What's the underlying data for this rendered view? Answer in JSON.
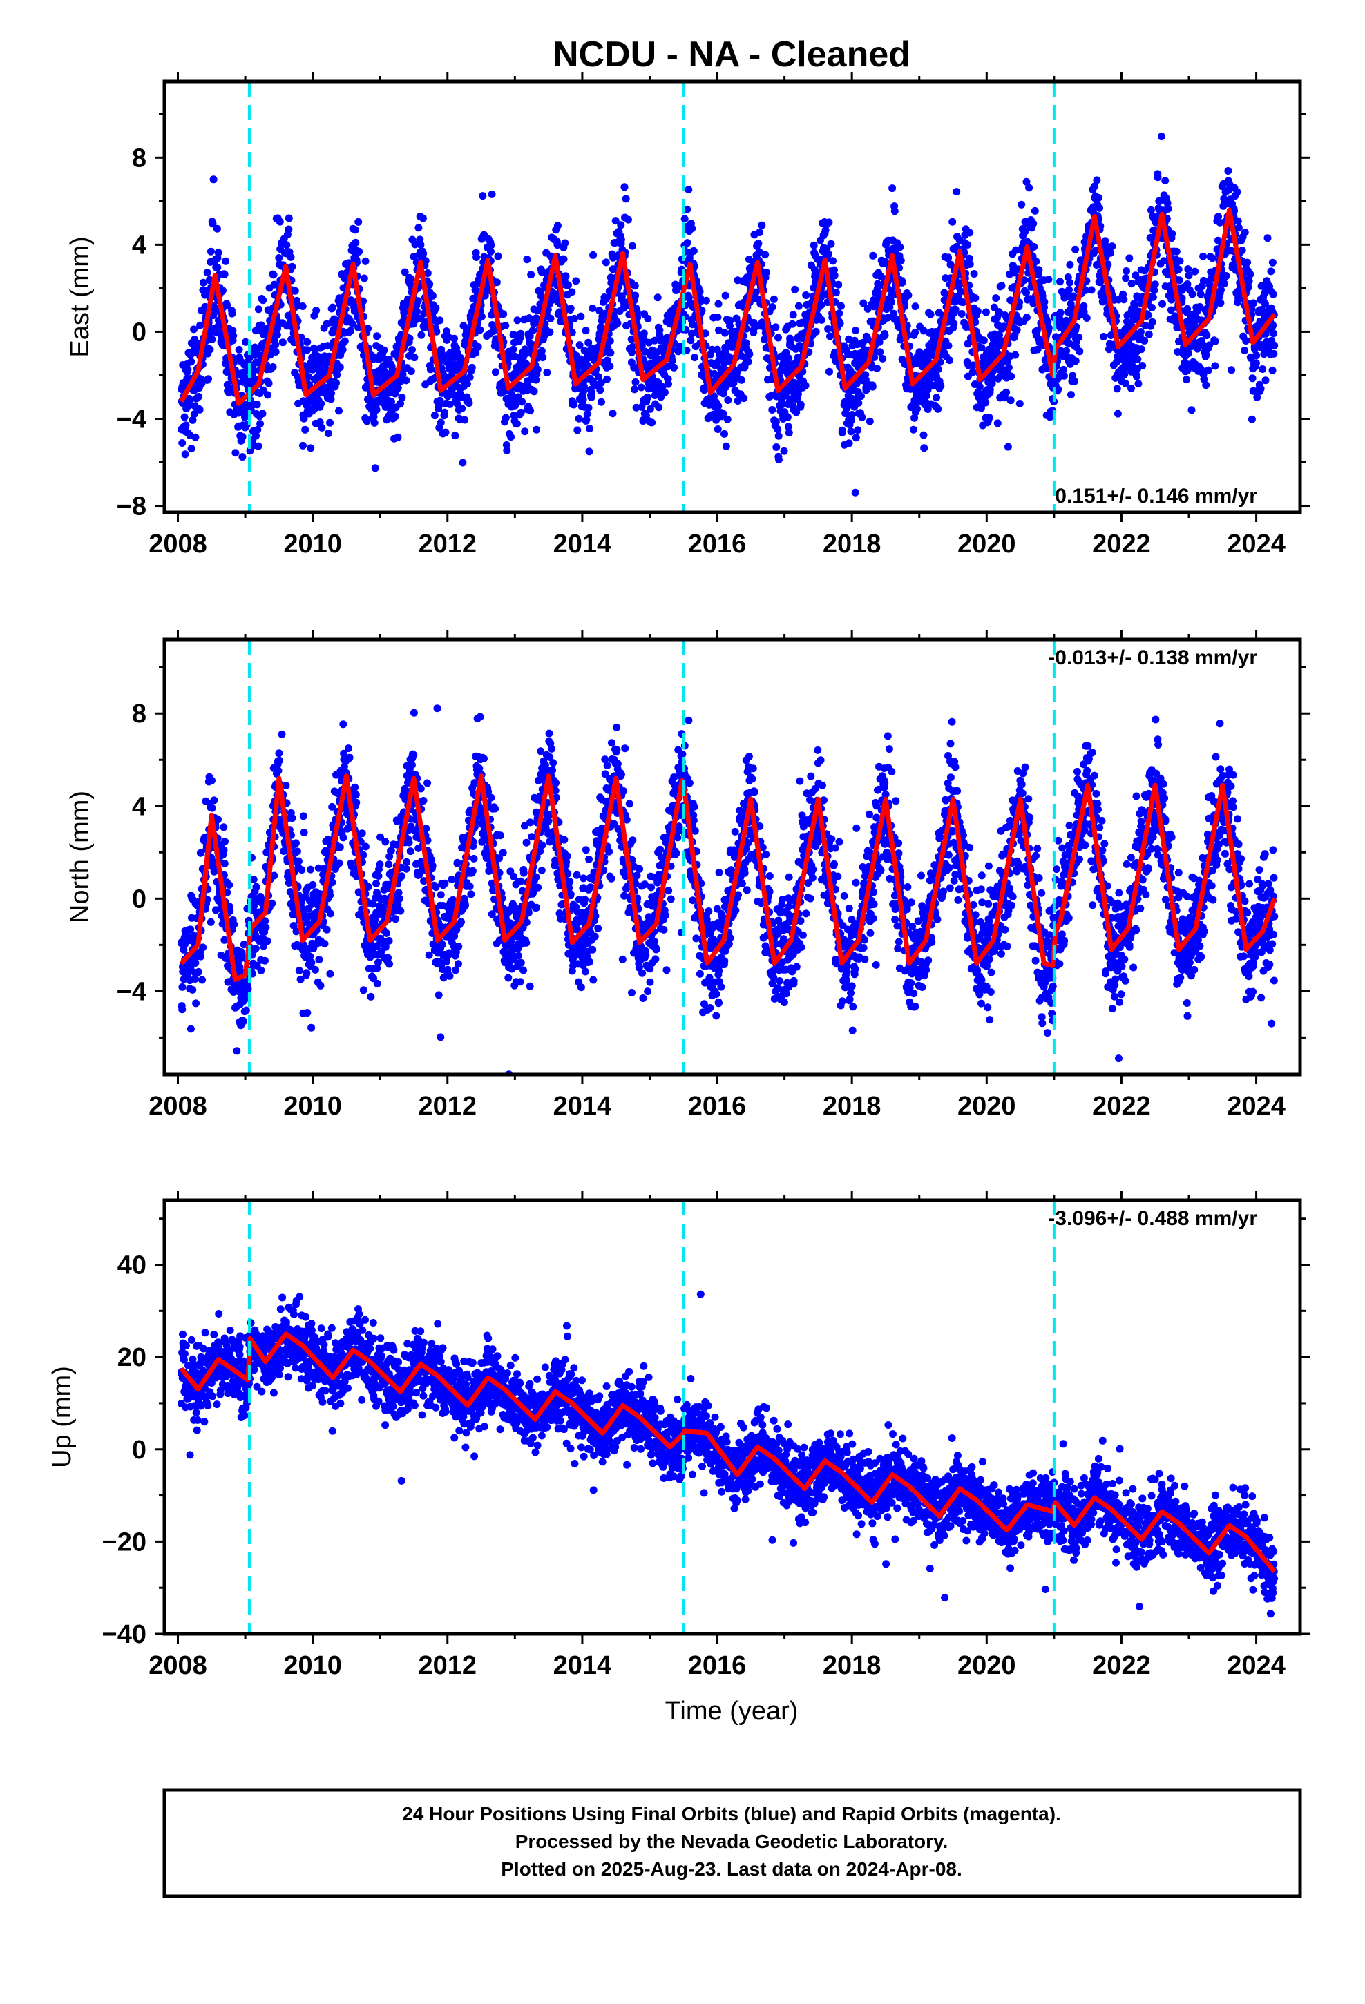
{
  "title": "NCDU  - NA - Cleaned",
  "xlabel": "Time (year)",
  "footer": {
    "line1": "24 Hour Positions Using Final Orbits (blue) and Rapid Orbits (magenta).",
    "line2": "Processed by the Nevada Geodetic Laboratory.",
    "line3": "Plotted on 2025-Aug-23. Last data on 2024-Apr-08."
  },
  "colors": {
    "points": "#0000ff",
    "model": "#ff0000",
    "events": "#00e5ee",
    "axis": "#000000"
  },
  "chart_data": [
    {
      "type": "scatter",
      "name_key": "east",
      "ylabel": "East (mm)",
      "xlim": [
        2007.8,
        2024.65
      ],
      "ylim": [
        -8.3,
        11.5
      ],
      "xticks": [
        2008,
        2010,
        2012,
        2014,
        2016,
        2018,
        2020,
        2022,
        2024
      ],
      "yticks": [
        -8,
        -4,
        0,
        4,
        8
      ],
      "rate_label": "0.151+/- 0.146 mm/yr",
      "rate_position": "bottom-right",
      "event_lines": [
        2009.06,
        2015.5,
        2021.0
      ],
      "model_line": {
        "x": [
          2008.05,
          2008.3,
          2008.55,
          2008.9,
          2009.2,
          2009.6,
          2009.9,
          2010.25,
          2010.6,
          2010.9,
          2011.25,
          2011.6,
          2011.9,
          2012.25,
          2012.6,
          2012.9,
          2013.25,
          2013.6,
          2013.9,
          2014.25,
          2014.6,
          2014.9,
          2015.25,
          2015.6,
          2015.9,
          2016.25,
          2016.6,
          2016.9,
          2017.25,
          2017.6,
          2017.9,
          2018.25,
          2018.6,
          2018.9,
          2019.25,
          2019.6,
          2019.9,
          2020.25,
          2020.6,
          2020.98,
          2021.02,
          2021.3,
          2021.6,
          2021.95,
          2022.3,
          2022.6,
          2022.95,
          2023.3,
          2023.6,
          2023.95,
          2024.27
        ],
        "y": [
          -3.2,
          -1.8,
          2.6,
          -3.3,
          -2.4,
          3.0,
          -2.9,
          -2.0,
          3.1,
          -2.9,
          -2.0,
          3.2,
          -2.7,
          -1.8,
          3.3,
          -2.6,
          -1.6,
          3.5,
          -2.4,
          -1.4,
          3.6,
          -2.2,
          -1.3,
          3.1,
          -2.8,
          -1.5,
          3.2,
          -2.7,
          -1.6,
          3.3,
          -2.6,
          -1.4,
          3.5,
          -2.4,
          -1.3,
          3.7,
          -2.2,
          -1.0,
          3.9,
          -2.0,
          -0.8,
          0.5,
          5.3,
          -0.7,
          0.5,
          5.4,
          -0.6,
          0.6,
          5.6,
          -0.5,
          0.8
        ]
      },
      "scatter_model": {
        "trend_per_yr": 0.151,
        "amplitude": 3.0,
        "noise_sd": 1.25,
        "n_per_year": 260
      }
    },
    {
      "type": "scatter",
      "name_key": "north",
      "ylabel": "North (mm)",
      "xlim": [
        2007.8,
        2024.65
      ],
      "ylim": [
        -7.6,
        11.2
      ],
      "xticks": [
        2008,
        2010,
        2012,
        2014,
        2016,
        2018,
        2020,
        2022,
        2024
      ],
      "yticks": [
        -4,
        0,
        4,
        8
      ],
      "rate_label": "-0.013+/- 0.138 mm/yr",
      "rate_position": "top-right",
      "event_lines": [
        2009.06,
        2015.5,
        2021.0
      ],
      "model_line": {
        "x": [
          2008.05,
          2008.3,
          2008.5,
          2008.85,
          2009.0,
          2009.08,
          2009.3,
          2009.5,
          2009.85,
          2010.1,
          2010.5,
          2010.85,
          2011.1,
          2011.5,
          2011.85,
          2012.1,
          2012.5,
          2012.85,
          2013.1,
          2013.5,
          2013.85,
          2014.1,
          2014.5,
          2014.85,
          2015.1,
          2015.48,
          2015.52,
          2015.85,
          2016.1,
          2016.5,
          2016.85,
          2017.1,
          2017.5,
          2017.85,
          2018.1,
          2018.5,
          2018.85,
          2019.1,
          2019.5,
          2019.85,
          2020.1,
          2020.5,
          2020.85,
          2020.98,
          2021.02,
          2021.1,
          2021.5,
          2021.85,
          2022.1,
          2022.5,
          2022.85,
          2023.1,
          2023.5,
          2023.85,
          2024.1,
          2024.27
        ],
        "y": [
          -2.8,
          -2.0,
          3.6,
          -3.5,
          -3.3,
          -1.3,
          -0.6,
          5.2,
          -1.8,
          -1.0,
          5.3,
          -1.8,
          -1.0,
          5.2,
          -1.8,
          -1.0,
          5.3,
          -1.8,
          -1.0,
          5.3,
          -1.9,
          -1.1,
          5.2,
          -1.9,
          -1.1,
          5.1,
          4.6,
          -2.8,
          -1.8,
          4.3,
          -2.8,
          -1.8,
          4.3,
          -2.8,
          -1.8,
          4.3,
          -2.8,
          -1.8,
          4.3,
          -2.8,
          -1.8,
          4.3,
          -2.8,
          -2.9,
          -1.5,
          -0.9,
          4.9,
          -2.2,
          -1.3,
          4.9,
          -2.2,
          -1.3,
          4.9,
          -2.2,
          -1.4,
          0.0
        ]
      },
      "scatter_model": {
        "trend_per_yr": -0.013,
        "amplitude": 3.5,
        "noise_sd": 1.2,
        "n_per_year": 260
      }
    },
    {
      "type": "scatter",
      "name_key": "up",
      "ylabel": "Up (mm)",
      "xlim": [
        2007.8,
        2024.65
      ],
      "ylim": [
        -40,
        54
      ],
      "xticks": [
        2008,
        2010,
        2012,
        2014,
        2016,
        2018,
        2020,
        2022,
        2024
      ],
      "yticks": [
        -40,
        -20,
        0,
        20,
        40
      ],
      "rate_label": "-3.096+/- 0.488 mm/yr",
      "rate_position": "top-right",
      "event_lines": [
        2009.06,
        2015.5,
        2021.0
      ],
      "model_line": {
        "x": [
          2008.05,
          2008.3,
          2008.6,
          2008.85,
          2009.04,
          2009.07,
          2009.3,
          2009.6,
          2009.85,
          2010.3,
          2010.6,
          2010.85,
          2011.3,
          2011.6,
          2011.85,
          2012.3,
          2012.6,
          2012.85,
          2013.3,
          2013.6,
          2013.85,
          2014.3,
          2014.6,
          2014.85,
          2015.3,
          2015.48,
          2015.52,
          2015.85,
          2016.3,
          2016.6,
          2016.85,
          2017.3,
          2017.6,
          2017.85,
          2018.3,
          2018.6,
          2018.85,
          2019.3,
          2019.6,
          2019.85,
          2020.3,
          2020.6,
          2020.98,
          2021.02,
          2021.3,
          2021.6,
          2021.85,
          2022.3,
          2022.6,
          2022.85,
          2023.3,
          2023.6,
          2023.85,
          2024.27
        ],
        "y": [
          17.5,
          13.0,
          19.5,
          17.0,
          15.0,
          24.0,
          19.0,
          25.0,
          22.5,
          15.5,
          21.5,
          19.0,
          12.5,
          18.5,
          16.0,
          9.5,
          15.5,
          13.0,
          6.5,
          12.5,
          10.0,
          3.5,
          9.5,
          7.0,
          0.5,
          3.0,
          4.0,
          3.5,
          -5.5,
          0.5,
          -2.0,
          -8.5,
          -2.5,
          -5.0,
          -11.5,
          -5.5,
          -8.0,
          -14.5,
          -8.5,
          -11.0,
          -17.5,
          -12.0,
          -13.5,
          -11.5,
          -16.5,
          -10.5,
          -13.0,
          -19.5,
          -13.5,
          -16.0,
          -22.5,
          -16.5,
          -19.0,
          -26.5
        ]
      },
      "scatter_model": {
        "trend_per_yr": -3.096,
        "amplitude": 3.0,
        "noise_sd": 3.6,
        "n_per_year": 260
      }
    }
  ]
}
